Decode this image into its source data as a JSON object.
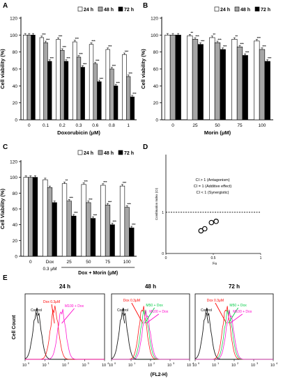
{
  "colors": {
    "h24": "#ffffff",
    "h48": "#a6a6a6",
    "h72": "#000000",
    "dox": "#ff0000",
    "m50": "#00cc44",
    "m100": "#ff00cc",
    "control": "#000000"
  },
  "legend": [
    "24 h",
    "48 h",
    "72 h"
  ],
  "chart_data": [
    {
      "panel": "A",
      "type": "bar",
      "ylabel": "Cell viability (%)",
      "xlabel": "Doxorubicin (μM)",
      "ylim": [
        0,
        120
      ],
      "yticks": [
        0,
        20,
        40,
        60,
        80,
        100,
        120
      ],
      "categories": [
        "0",
        "0.1",
        "0.2",
        "0.3",
        "0.6",
        "0.8",
        "1"
      ],
      "series": [
        {
          "name": "24 h",
          "values": [
            100,
            97,
            95,
            92,
            89,
            83,
            77
          ],
          "sig": [
            "",
            "***",
            "***",
            "***",
            "***",
            "***",
            "***"
          ]
        },
        {
          "name": "48 h",
          "values": [
            100,
            91,
            82,
            74,
            66,
            60,
            51
          ],
          "sig": [
            "",
            "***",
            "***",
            "***",
            "***",
            "***",
            "***"
          ]
        },
        {
          "name": "72 h",
          "values": [
            100,
            69,
            69,
            62,
            45,
            40,
            27
          ],
          "sig": [
            "",
            "***",
            "***",
            "***",
            "***",
            "***",
            "***"
          ]
        }
      ]
    },
    {
      "panel": "B",
      "type": "bar",
      "ylabel": "Cell viability (%)",
      "xlabel": "Morin (μM)",
      "ylim": [
        0,
        120
      ],
      "yticks": [
        0,
        20,
        40,
        60,
        80,
        100,
        120
      ],
      "categories": [
        "0",
        "25",
        "50",
        "75",
        "100"
      ],
      "series": [
        {
          "name": "24 h",
          "values": [
            100,
            99,
            97,
            95,
            93
          ],
          "sig": [
            "",
            "**",
            "**",
            "**",
            "***"
          ]
        },
        {
          "name": "48 h",
          "values": [
            100,
            95,
            91,
            86,
            83
          ],
          "sig": [
            "",
            "***",
            "***",
            "***",
            "***"
          ]
        },
        {
          "name": "72 h",
          "values": [
            100,
            89,
            83,
            76,
            69
          ],
          "sig": [
            "",
            "***",
            "***",
            "***",
            "***"
          ]
        }
      ]
    },
    {
      "panel": "C",
      "type": "bar",
      "ylabel": "Cell Viability (%)",
      "xlabel": "Dox + Morin (μM)",
      "dox_label": "0.3 μM",
      "ylim": [
        0,
        120
      ],
      "yticks": [
        0,
        20,
        40,
        60,
        80,
        100,
        120
      ],
      "categories": [
        "0",
        "Dox",
        "25",
        "50",
        "75",
        "100"
      ],
      "series": [
        {
          "name": "24 h",
          "values": [
            100,
            97,
            92,
            91,
            90,
            89
          ],
          "sig": [
            "",
            "",
            "**",
            "***",
            "***",
            "***"
          ]
        },
        {
          "name": "48 h",
          "values": [
            100,
            87,
            70,
            68,
            65,
            62
          ],
          "sig": [
            "",
            "",
            "***",
            "***",
            "***",
            "***"
          ]
        },
        {
          "name": "72 h",
          "values": [
            100,
            68,
            51,
            48,
            40,
            36
          ],
          "sig": [
            "",
            "",
            "***",
            "***",
            "***",
            "***"
          ]
        }
      ]
    },
    {
      "panel": "D",
      "type": "scatter",
      "ylabel": "Combination Index (CI)",
      "xlabel": "Fa",
      "xlim": [
        0,
        1
      ],
      "ylim": [
        0,
        2.4
      ],
      "xticks": [
        "0",
        "0.5",
        "1"
      ],
      "yticks": [
        "0",
        "1"
      ],
      "reference_y": 1,
      "points": [
        {
          "x": 0.37,
          "y": 0.55
        },
        {
          "x": 0.41,
          "y": 0.6
        },
        {
          "x": 0.48,
          "y": 0.75
        },
        {
          "x": 0.53,
          "y": 0.78
        }
      ],
      "notes": [
        "CI > 1 (Antagonism)",
        "CI = 1 (Additive effect)",
        "CI < 1 (Synergistic)"
      ]
    },
    {
      "panel": "E",
      "type": "histogram",
      "ylabel": "Cell Count",
      "xlabel": "(FL2-H)",
      "xscale": "log",
      "xlim": [
        1,
        10000
      ],
      "xtick_labels": [
        "10",
        "10",
        "10",
        "10",
        "10"
      ],
      "xtick_exponents": [
        "0",
        "1",
        "2",
        "3",
        "4"
      ],
      "subplots": [
        {
          "title": "24 h",
          "peaks": [
            {
              "label": "Control",
              "center": 4
            },
            {
              "label": "Dox 0.3μM",
              "center": 30
            },
            {
              "label": "M100 + Dox",
              "center": 70
            }
          ]
        },
        {
          "title": "48 h",
          "peaks": [
            {
              "label": "Control",
              "center": 4
            },
            {
              "label": "Dox 0.3μM",
              "center": 40
            },
            {
              "label": "M50 + Dox",
              "center": 50
            },
            {
              "label": "M100 + Dox",
              "center": 60
            }
          ]
        },
        {
          "title": "72 h",
          "peaks": [
            {
              "label": "Control",
              "center": 4
            },
            {
              "label": "Dox 0.3μM",
              "center": 40
            },
            {
              "label": "M50 + Dox",
              "center": 50
            },
            {
              "label": "M100 + Dox",
              "center": 60
            }
          ]
        }
      ]
    }
  ]
}
